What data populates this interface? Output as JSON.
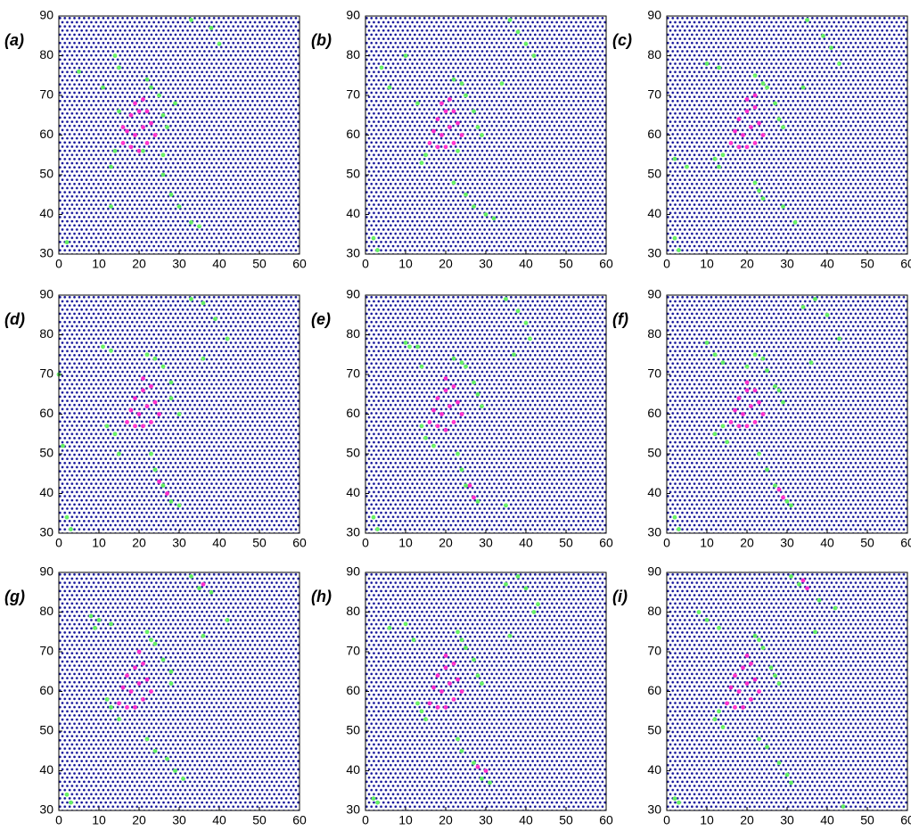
{
  "chart_data": [
    {
      "type": "scatter",
      "label": "(a)",
      "xlim": [
        0,
        60
      ],
      "ylim": [
        30,
        90
      ],
      "xticks": [
        0,
        10,
        20,
        30,
        40,
        50,
        60
      ],
      "yticks": [
        30,
        40,
        50,
        60,
        70,
        80,
        90
      ],
      "lattice_color": "#14149a",
      "series": [
        {
          "color": "#ff33cc",
          "x": [
            16,
            18,
            20,
            22,
            24,
            17,
            19,
            21,
            23,
            18,
            20,
            22,
            19,
            21,
            16
          ],
          "y": [
            58,
            57,
            56,
            58,
            60,
            61,
            60,
            62,
            63,
            65,
            66,
            66,
            68,
            69,
            62
          ]
        },
        {
          "color": "#66ee66",
          "x": [
            14,
            13,
            15,
            25,
            26,
            27,
            23,
            22,
            21,
            33,
            38,
            40,
            14,
            15,
            5,
            26,
            28,
            30,
            33,
            35,
            13,
            2,
            11,
            29,
            26
          ],
          "y": [
            56,
            52,
            66,
            70,
            65,
            62,
            72,
            74,
            56,
            89,
            87,
            83,
            80,
            77,
            76,
            50,
            45,
            42,
            38,
            37,
            42,
            33,
            72,
            68,
            55
          ]
        }
      ]
    },
    {
      "type": "scatter",
      "label": "(b)",
      "xlim": [
        0,
        60
      ],
      "ylim": [
        30,
        90
      ],
      "xticks": [
        0,
        10,
        20,
        30,
        40,
        50,
        60
      ],
      "yticks": [
        30,
        40,
        50,
        60,
        70,
        80,
        90
      ],
      "lattice_color": "#14149a",
      "series": [
        {
          "color": "#ff33cc",
          "x": [
            16,
            18,
            20,
            22,
            24,
            17,
            19,
            21,
            23,
            18,
            20,
            22,
            19,
            21
          ],
          "y": [
            58,
            57,
            57,
            58,
            60,
            61,
            60,
            62,
            63,
            64,
            66,
            66,
            68,
            69
          ]
        },
        {
          "color": "#66ee66",
          "x": [
            15,
            14,
            13,
            25,
            27,
            29,
            24,
            22,
            36,
            38,
            40,
            42,
            10,
            4,
            6,
            22,
            25,
            27,
            30,
            32,
            2,
            3,
            34,
            28,
            23
          ],
          "y": [
            55,
            53,
            68,
            70,
            66,
            60,
            73,
            74,
            89,
            86,
            83,
            80,
            80,
            77,
            72,
            48,
            45,
            42,
            40,
            39,
            34,
            31,
            73,
            62,
            56
          ]
        }
      ]
    },
    {
      "type": "scatter",
      "label": "(c)",
      "xlim": [
        0,
        60
      ],
      "ylim": [
        30,
        90
      ],
      "xticks": [
        0,
        10,
        20,
        30,
        40,
        50,
        60
      ],
      "yticks": [
        30,
        40,
        50,
        60,
        70,
        80,
        90
      ],
      "lattice_color": "#14149a",
      "series": [
        {
          "color": "#ff33cc",
          "x": [
            16,
            18,
            20,
            22,
            24,
            17,
            19,
            21,
            23,
            18,
            20,
            22,
            20,
            22
          ],
          "y": [
            58,
            57,
            57,
            58,
            60,
            61,
            60,
            62,
            63,
            64,
            66,
            67,
            69,
            70
          ]
        },
        {
          "color": "#66ee66",
          "x": [
            14,
            12,
            13,
            25,
            27,
            29,
            24,
            22,
            35,
            39,
            41,
            43,
            10,
            13,
            2,
            22,
            23,
            24,
            29,
            32,
            2,
            3,
            34,
            28,
            5
          ],
          "y": [
            55,
            54,
            52,
            72,
            68,
            62,
            73,
            75,
            89,
            85,
            82,
            78,
            78,
            77,
            54,
            48,
            46,
            44,
            42,
            38,
            34,
            31,
            72,
            64,
            52
          ]
        }
      ]
    },
    {
      "type": "scatter",
      "label": "(d)",
      "xlim": [
        0,
        60
      ],
      "ylim": [
        30,
        90
      ],
      "xticks": [
        0,
        10,
        20,
        30,
        40,
        50,
        60
      ],
      "yticks": [
        30,
        40,
        50,
        60,
        70,
        80,
        90
      ],
      "lattice_color": "#14149a",
      "series": [
        {
          "color": "#ff33cc",
          "x": [
            17,
            19,
            21,
            23,
            25,
            18,
            20,
            22,
            24,
            19,
            21,
            23,
            21,
            25,
            27
          ],
          "y": [
            58,
            57,
            57,
            58,
            60,
            61,
            60,
            62,
            63,
            64,
            66,
            67,
            69,
            43,
            40
          ]
        },
        {
          "color": "#66ee66",
          "x": [
            14,
            12,
            15,
            26,
            28,
            30,
            24,
            22,
            33,
            36,
            39,
            42,
            11,
            13,
            0,
            23,
            24,
            26,
            28,
            30,
            2,
            3,
            36,
            28,
            1
          ],
          "y": [
            55,
            57,
            50,
            72,
            68,
            60,
            74,
            75,
            89,
            88,
            84,
            79,
            77,
            76,
            70,
            50,
            46,
            42,
            38,
            37,
            34,
            31,
            74,
            64,
            52
          ]
        }
      ]
    },
    {
      "type": "scatter",
      "label": "(e)",
      "xlim": [
        0,
        60
      ],
      "ylim": [
        30,
        90
      ],
      "xticks": [
        0,
        10,
        20,
        30,
        40,
        50,
        60
      ],
      "yticks": [
        30,
        40,
        50,
        60,
        70,
        80,
        90
      ],
      "lattice_color": "#14149a",
      "series": [
        {
          "color": "#ff33cc",
          "x": [
            16,
            18,
            20,
            22,
            24,
            17,
            19,
            21,
            23,
            18,
            20,
            22,
            20,
            26,
            27
          ],
          "y": [
            58,
            57,
            56,
            58,
            60,
            61,
            60,
            62,
            63,
            64,
            66,
            67,
            69,
            42,
            39
          ]
        },
        {
          "color": "#66ee66",
          "x": [
            14,
            15,
            17,
            25,
            27,
            29,
            24,
            22,
            35,
            38,
            40,
            41,
            10,
            13,
            14,
            23,
            24,
            25,
            28,
            35,
            2,
            3,
            37,
            28,
            11
          ],
          "y": [
            57,
            54,
            52,
            72,
            68,
            62,
            73,
            74,
            89,
            86,
            83,
            79,
            78,
            77,
            72,
            50,
            46,
            42,
            38,
            37,
            34,
            31,
            75,
            65,
            77
          ]
        }
      ]
    },
    {
      "type": "scatter",
      "label": "(f)",
      "xlim": [
        0,
        60
      ],
      "ylim": [
        30,
        90
      ],
      "xticks": [
        0,
        10,
        20,
        30,
        40,
        50,
        60
      ],
      "yticks": [
        30,
        40,
        50,
        60,
        70,
        80,
        90
      ],
      "lattice_color": "#14149a",
      "series": [
        {
          "color": "#ff33cc",
          "x": [
            16,
            18,
            20,
            22,
            24,
            17,
            19,
            21,
            23,
            18,
            20,
            22,
            20,
            28,
            29
          ],
          "y": [
            58,
            57,
            57,
            58,
            60,
            61,
            60,
            62,
            63,
            64,
            66,
            66,
            68,
            41,
            39
          ]
        },
        {
          "color": "#66ee66",
          "x": [
            14,
            15,
            12,
            25,
            27,
            29,
            24,
            22,
            34,
            37,
            40,
            43,
            10,
            12,
            14,
            23,
            25,
            27,
            30,
            31,
            2,
            3,
            36,
            28,
            20
          ],
          "y": [
            57,
            53,
            55,
            71,
            67,
            63,
            74,
            75,
            87,
            89,
            85,
            79,
            78,
            75,
            73,
            50,
            46,
            42,
            38,
            37,
            34,
            31,
            73,
            66,
            72
          ]
        }
      ]
    },
    {
      "type": "scatter",
      "label": "(g)",
      "xlim": [
        0,
        60
      ],
      "ylim": [
        30,
        90
      ],
      "xticks": [
        0,
        10,
        20,
        30,
        40,
        50,
        60
      ],
      "yticks": [
        30,
        40,
        50,
        60,
        70,
        80,
        90
      ],
      "lattice_color": "#14149a",
      "series": [
        {
          "color": "#ff33cc",
          "x": [
            15,
            17,
            19,
            21,
            23,
            16,
            18,
            20,
            22,
            17,
            19,
            21,
            20,
            36,
            38
          ],
          "y": [
            57,
            56,
            56,
            58,
            60,
            61,
            60,
            62,
            63,
            64,
            66,
            67,
            70,
            87,
            85
          ]
        },
        {
          "color": "#66ee66",
          "x": [
            13,
            12,
            15,
            24,
            26,
            28,
            23,
            22,
            33,
            35,
            38,
            42,
            10,
            13,
            8,
            22,
            24,
            27,
            29,
            31,
            2,
            3,
            36,
            28,
            9
          ],
          "y": [
            56,
            58,
            53,
            72,
            68,
            62,
            73,
            75,
            89,
            86,
            85,
            78,
            78,
            77,
            79,
            48,
            45,
            43,
            40,
            38,
            34,
            32,
            74,
            65,
            76
          ]
        }
      ]
    },
    {
      "type": "scatter",
      "label": "(h)",
      "xlim": [
        0,
        60
      ],
      "ylim": [
        30,
        90
      ],
      "xticks": [
        0,
        10,
        20,
        30,
        40,
        50,
        60
      ],
      "yticks": [
        30,
        40,
        50,
        60,
        70,
        80,
        90
      ],
      "lattice_color": "#14149a",
      "series": [
        {
          "color": "#ff33cc",
          "x": [
            16,
            18,
            20,
            22,
            24,
            17,
            19,
            21,
            23,
            18,
            20,
            22,
            20,
            28,
            30
          ],
          "y": [
            57,
            56,
            56,
            58,
            60,
            61,
            60,
            62,
            63,
            64,
            66,
            67,
            69,
            41,
            40
          ]
        },
        {
          "color": "#66ee66",
          "x": [
            14,
            15,
            13,
            25,
            27,
            29,
            24,
            23,
            35,
            38,
            40,
            43,
            10,
            12,
            6,
            23,
            24,
            27,
            29,
            31,
            2,
            3,
            36,
            28,
            42
          ],
          "y": [
            55,
            53,
            57,
            71,
            68,
            62,
            73,
            75,
            87,
            89,
            86,
            82,
            77,
            73,
            76,
            48,
            45,
            42,
            38,
            37,
            33,
            32,
            74,
            64,
            80
          ]
        }
      ]
    },
    {
      "type": "scatter",
      "label": "(i)",
      "xlim": [
        0,
        60
      ],
      "ylim": [
        30,
        90
      ],
      "xticks": [
        0,
        10,
        20,
        30,
        40,
        50,
        60
      ],
      "yticks": [
        30,
        40,
        50,
        60,
        70,
        80,
        90
      ],
      "lattice_color": "#14149a",
      "series": [
        {
          "color": "#ff33cc",
          "x": [
            15,
            17,
            19,
            21,
            23,
            16,
            18,
            20,
            22,
            17,
            19,
            21,
            20,
            34,
            35
          ],
          "y": [
            57,
            56,
            56,
            58,
            60,
            61,
            60,
            62,
            63,
            64,
            66,
            67,
            69,
            88,
            86
          ]
        },
        {
          "color": "#66ee66",
          "x": [
            13,
            12,
            14,
            24,
            26,
            28,
            23,
            22,
            31,
            33,
            38,
            42,
            10,
            13,
            8,
            23,
            25,
            28,
            30,
            31,
            2,
            3,
            37,
            27,
            44
          ],
          "y": [
            55,
            53,
            51,
            71,
            66,
            62,
            73,
            74,
            89,
            87,
            83,
            81,
            78,
            76,
            80,
            48,
            46,
            42,
            39,
            37,
            33,
            32,
            75,
            64,
            31
          ]
        }
      ]
    }
  ]
}
